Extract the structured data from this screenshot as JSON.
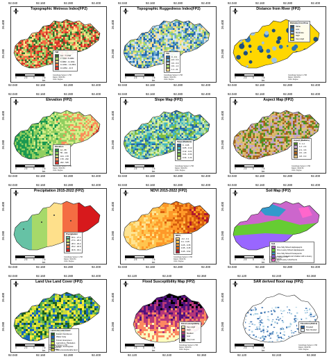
{
  "panels": [
    {
      "title": "Topographic Wetness Index(FP2)",
      "ticks_top": [
        "92.040",
        "92.160",
        "92.280",
        "92.400"
      ],
      "ticks_bottom": [
        "92.040",
        "92.160",
        "92.280",
        "92.400"
      ],
      "ticks_left": [
        "26.400",
        "26.280"
      ],
      "legend": {
        "title": "TWI",
        "items": [
          {
            "label": "4.2 - 7.7763",
            "color": "#2b6e2b"
          },
          {
            "label": "7.7763 - 9.4982",
            "color": "#a6d96a"
          },
          {
            "label": "9.4982 - 11.1811",
            "color": "#fee08b"
          },
          {
            "label": "11.1811 - 13.2951",
            "color": "#f46d43"
          },
          {
            "label": "13.2951 - 21.5",
            "color": "#d73027"
          }
        ]
      },
      "credit": [
        "Coordinate System: UTM",
        "Datum: WGS 84",
        "Units: Degree"
      ],
      "scale": [
        "0",
        "2.5",
        "5",
        "7.5 km"
      ]
    },
    {
      "title": "Topographic Ruggedness Index(FP2)",
      "ticks_top": [
        "92.040",
        "92.160",
        "92.280",
        "92.400"
      ],
      "ticks_bottom": [
        "92.040",
        "92.160",
        "92.280",
        "92.400"
      ],
      "ticks_left": [
        "26.400",
        "26.280"
      ],
      "legend": {
        "title": "TRI",
        "items": [
          {
            "label": "0 - 0.3",
            "color": "#2166ac"
          },
          {
            "label": "0.3 - 0.6",
            "color": "#67a9cf"
          },
          {
            "label": "0.6 - 0.9",
            "color": "#d1e5f0"
          },
          {
            "label": "0.9 - 1.4",
            "color": "#a6d96a"
          },
          {
            "label": "1.4 - 21",
            "color": "#fee08b"
          }
        ]
      },
      "credit": [
        "Coordinate System: UTM",
        "Datum: WGS 84",
        "Units: Degree"
      ],
      "scale": [
        "0",
        "2.5",
        "5",
        "7.5 km"
      ]
    },
    {
      "title": "Distance from River (FP2)",
      "ticks_top": [
        "92.040",
        "92.160",
        "92.280",
        "92.400"
      ],
      "ticks_bottom": [
        "92.040",
        "92.160",
        "92.280",
        "92.400"
      ],
      "ticks_left": [
        "26.400",
        "26.280"
      ],
      "legend": {
        "title": "Distance from River",
        "items": [
          {
            "label": "Value",
            "color": "#1f4e79"
          },
          {
            "label": "Low",
            "color": "#2e75b6"
          },
          {
            "label": "Moderate",
            "color": "#9dc3e6"
          },
          {
            "label": "High",
            "color": "#ffd700"
          },
          {
            "label": "Very High",
            "color": "#e6e600"
          }
        ]
      },
      "credit": [
        "Coordinate System: UTM",
        "Datum: WGS 84",
        "Units: Degree"
      ],
      "scale": [
        "0",
        "2.5",
        "5",
        "7.5 km"
      ]
    },
    {
      "title": "Elevation (FP2)",
      "ticks_top": [
        "92.040",
        "92.160",
        "92.280",
        "92.400"
      ],
      "ticks_bottom": [
        "92.040",
        "92.160",
        "92.280",
        "92.400"
      ],
      "ticks_left": [
        "26.400",
        "26.280"
      ],
      "legend": {
        "title": "Elevation",
        "items": [
          {
            "label": "12 - 55",
            "color": "#1a9850"
          },
          {
            "label": "55 - 104",
            "color": "#91cf60"
          },
          {
            "label": "104 - 178",
            "color": "#d9ef8b"
          },
          {
            "label": "178 - 262",
            "color": "#fc8d59"
          },
          {
            "label": "262 - 535",
            "color": "#d73027"
          }
        ]
      },
      "credit": [
        "Coordinate System: UTM",
        "Datum: WGS 84",
        "Units: Degree"
      ],
      "scale": [
        "0",
        "2.5",
        "5",
        "7.5 km"
      ]
    },
    {
      "title": "Slope Map (FP2)",
      "ticks_top": [
        "92.040",
        "92.160",
        "92.280",
        "92.400"
      ],
      "ticks_bottom": [
        "92.040",
        "92.160",
        "92.280",
        "92.400"
      ],
      "ticks_left": [
        "26.400",
        "26.280"
      ],
      "legend": {
        "title": "Slope (Radians)",
        "items": [
          {
            "label": "0 - 0.05",
            "color": "#2166ac"
          },
          {
            "label": "0.05 - 0.12",
            "color": "#41b6c4"
          },
          {
            "label": "0.12 - 0.21",
            "color": "#a1dab4"
          },
          {
            "label": "0.21 - 0.34",
            "color": "#7fbc41"
          },
          {
            "label": "0.34 - 1.24",
            "color": "#d9f0a3"
          }
        ]
      },
      "credit": [
        "Coordinate System: UTM",
        "Datum: WGS 84",
        "Units: Degree"
      ],
      "scale": [
        "0",
        "2.5",
        "5",
        "7.5 km"
      ]
    },
    {
      "title": "Aspect Map (FP2)",
      "ticks_top": [
        "92.040",
        "92.160",
        "92.280",
        "92.400"
      ],
      "ticks_bottom": [
        "92.040",
        "92.160",
        "92.280",
        "92.400"
      ],
      "ticks_left": [
        "26.400",
        "26.280"
      ],
      "legend": {
        "title": "Aspect (Radians)",
        "items": [
          {
            "label": "0 - 1.2",
            "color": "#4d9221"
          },
          {
            "label": "1.2 - 2.4",
            "color": "#c2a5cf"
          },
          {
            "label": "2.4 - 3.6",
            "color": "#d8b365"
          },
          {
            "label": "3.6 - 4.8",
            "color": "#a6611a"
          },
          {
            "label": "4.8 - 6.3",
            "color": "#dfc27d"
          }
        ]
      },
      "credit": [
        "Coordinate System: UTM",
        "Datum: WGS 84",
        "Units: Degree"
      ],
      "scale": [
        "0",
        "2.5",
        "5",
        "7.5 km"
      ]
    },
    {
      "title": "Precipitation 2015-2022 (FP2)",
      "ticks_top": [
        "92.040",
        "92.160",
        "92.280",
        "92.400"
      ],
      "ticks_bottom": [
        "92.040",
        "92.160",
        "92.280",
        "92.400"
      ],
      "ticks_left": [
        "26.400",
        "26.280"
      ],
      "legend": {
        "title": "Precipitation",
        "items": [
          {
            "label": "26.1 - 27.4",
            "color": "#66c2a5"
          },
          {
            "label": "27.4 - 28.3",
            "color": "#a6d96a"
          },
          {
            "label": "28.3 - 29.2",
            "color": "#fee08b"
          },
          {
            "label": "29.2 - 30.8",
            "color": "#f46d43"
          },
          {
            "label": "30.8 - 33.1",
            "color": "#d7191c"
          }
        ]
      },
      "credit": [
        "Coordinate System: UTM",
        "Datum: WGS 84",
        "Units: Degree"
      ],
      "scale": [
        "0",
        "2.5",
        "5",
        "7.5 km"
      ]
    },
    {
      "title": "NDVI 2015-2022 (FP2)",
      "ticks_top": [
        "92.040",
        "92.160",
        "92.280",
        "92.400"
      ],
      "ticks_bottom": [
        "92.040",
        "92.160",
        "92.280",
        "92.400"
      ],
      "ticks_left": [
        "26.400",
        "26.280"
      ],
      "legend": {
        "title": "NDVI",
        "items": [
          {
            "label": "-0.2 - 0.1",
            "color": "#fee391"
          },
          {
            "label": "0.1 - 0.25",
            "color": "#fec44f"
          },
          {
            "label": "0.25 - 0.35",
            "color": "#fe9929"
          },
          {
            "label": "0.35 - 0.45",
            "color": "#d95f0e"
          },
          {
            "label": "0.45 - 0.62",
            "color": "#b2182b"
          }
        ]
      },
      "credit": [
        "Coordinate System: UTM",
        "Datum: WGS 84",
        "Units: Degree"
      ],
      "scale": [
        "0",
        "2.5",
        "5",
        "7.5 km"
      ]
    },
    {
      "title": "Soil Map (FP2)",
      "ticks_top": [
        "92.040",
        "92.160",
        "92.280",
        "92.400"
      ],
      "ticks_bottom": [
        "92.040",
        "92.160",
        "92.280",
        "92.400"
      ],
      "ticks_left": [
        "26.400",
        "26.280"
      ],
      "legend": {
        "title": "Soil",
        "items": [
          {
            "label": "Fine Silty Mixed Haplaquepts",
            "color": "#cc66cc"
          },
          {
            "label": "Fine Loamy Mixed Haplaquepts",
            "color": "#66cc33"
          },
          {
            "label": "Fine Silty Mixed Fluvaquents",
            "color": "#3399cc"
          },
          {
            "label": "Loamy skeletal and shallow with a loamy",
            "color": "#9966ff"
          },
          {
            "label": "Fine Loamy Udorthents",
            "color": "#ff66cc"
          }
        ]
      },
      "credit": [
        "Coordinate System: UTM",
        "Datum: WGS 84",
        "Units: Degree"
      ],
      "scale": [
        "0",
        "2.5",
        "5",
        "7.5 km"
      ]
    },
    {
      "title": "Land Use Land Cover (FP2)",
      "ticks_top": [
        "92.040",
        "92.160",
        "92.280",
        "92.400"
      ],
      "ticks_bottom": [
        "92.040",
        "92.160",
        "92.280",
        "92.400"
      ],
      "ticks_left": [
        "26.400",
        "26.280"
      ],
      "legend": {
        "title": "Land Use Land Cover",
        "items": [
          {
            "label": "Forest, Deciduous",
            "color": "#1b5e20"
          },
          {
            "label": "Water body",
            "color": "#1565c0"
          },
          {
            "label": "Forest, Evergreen",
            "color": "#4caf50"
          },
          {
            "label": "Agriculture, Plantation",
            "color": "#cddc39"
          },
          {
            "label": "Forest, Scrub/grass",
            "color": "#8bc34a"
          },
          {
            "label": "Barren/unculturable land",
            "color": "#ffeb3b"
          }
        ]
      },
      "credit": [
        "Coordinate System: UTM",
        "Datum: WGS 84",
        "Units: Degree"
      ],
      "scale": [
        "0",
        "2.5",
        "5",
        "7.5 km"
      ]
    },
    {
      "title": "Flood Susceptibility Map (FP2)",
      "ticks_top": [
        "92.120",
        "92.240",
        "92.360"
      ],
      "ticks_bottom": [
        "92.120",
        "92.240",
        "92.360"
      ],
      "ticks_left": [
        "26.400",
        "26.280"
      ],
      "legend": {
        "title": "Flood susceptibility",
        "items": [
          {
            "label": "Very High",
            "color": "#fcfdbf"
          },
          {
            "label": "High",
            "color": "#fc8961"
          },
          {
            "label": "Medium",
            "color": "#b73779"
          },
          {
            "label": "Low",
            "color": "#51127c"
          },
          {
            "label": "Very Low",
            "color": "#000004"
          }
        ]
      },
      "credit": [
        "Coordinate System: UTM",
        "Datum: WGS 84",
        "Units: Degree"
      ],
      "scale": [
        "0",
        "2.5",
        "5",
        "7.5 km"
      ]
    },
    {
      "title": "SAR derived flood map (FP2)",
      "ticks_top": [
        "92.120",
        "92.240",
        "92.360"
      ],
      "ticks_bottom": [
        "92.120",
        "92.240",
        "92.360"
      ],
      "ticks_left": [
        "26.400",
        "26.280"
      ],
      "legend": {
        "title": "Flood Ext (2016-2)",
        "items": [
          {
            "label": "Flooded",
            "color": "#1f5fa8"
          },
          {
            "label": "Non-flooded",
            "color": "#eaf2fb"
          }
        ]
      },
      "credit": [
        "Coordinate System: UTM",
        "Datum: WGS 84",
        "Units: Degree"
      ],
      "scale": [
        "0",
        "2.5",
        "5",
        "7.5 km"
      ]
    }
  ],
  "icons": {
    "north_arrow": "north-arrow-icon"
  }
}
